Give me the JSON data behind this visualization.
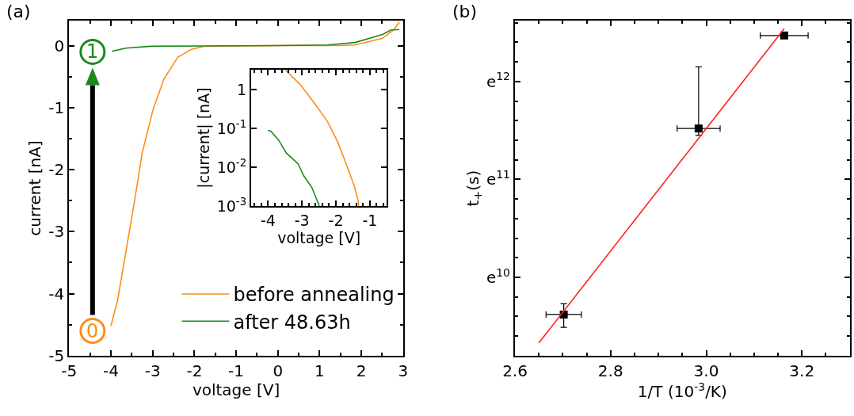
{
  "chart_data": [
    {
      "type": "line",
      "title": "(a)",
      "xlabel": "voltage [V]",
      "ylabel": "current [nA]",
      "xlim": [
        -5,
        3
      ],
      "xticks": [
        -5,
        -4,
        -3,
        -2,
        -1,
        0,
        1,
        2,
        3
      ],
      "ylim": [
        -5,
        0.4
      ],
      "yticks": [
        -5,
        -4,
        -3,
        -2,
        -1,
        0
      ],
      "legend": "bottom right",
      "marker": "none",
      "series": [
        {
          "name": "before annealing",
          "color": "#ff8c1a",
          "x": [
            -4.0,
            -3.84,
            -3.45,
            -3.25,
            -2.99,
            -2.73,
            -2.4,
            -2.07,
            -1.75,
            0.0,
            1.5,
            1.85,
            2.51,
            2.77,
            2.91
          ],
          "values": [
            -4.52,
            -4.11,
            -2.57,
            -1.73,
            -1.03,
            -0.54,
            -0.19,
            -0.06,
            -0.01,
            0.0,
            0.0,
            0.01,
            0.12,
            0.25,
            0.38
          ]
        },
        {
          "name": "after 48.63h",
          "color": "#1a8a1a",
          "x": [
            -3.97,
            -3.64,
            -3.05,
            0.0,
            1.2,
            1.85,
            2.51,
            2.7,
            2.91
          ],
          "values": [
            -0.09,
            -0.04,
            -0.01,
            0.0,
            0.01,
            0.05,
            0.18,
            0.25,
            0.26
          ]
        }
      ],
      "annotations": [
        {
          "text": "0",
          "x": -4.44,
          "y": -4.6
        },
        {
          "text": "1",
          "x": -4.44,
          "y": -0.1
        }
      ]
    },
    {
      "type": "line",
      "xlabel": "voltage [V]",
      "ylabel": "|current| [nA]",
      "log": "y",
      "xlim": [
        -4.5,
        -0.5
      ],
      "xticks": [
        -4,
        -3,
        -2,
        -1
      ],
      "ylim": [
        0.001,
        3.2
      ],
      "yticks": [
        {
          "value": 0.001,
          "label": "10$^{-3}$"
        },
        {
          "value": 0.01,
          "label": "10$^{-2}$"
        },
        {
          "value": 0.1,
          "label": "10$^{-1}$"
        },
        1
      ],
      "marker": "none",
      "series": [
        {
          "color": "#ff8c1a",
          "x": [
            -3.49,
            -3.04,
            -2.57,
            -2.25,
            -1.94,
            -1.7,
            -1.47,
            -1.35,
            -1.33
          ],
          "values": [
            3.2,
            1.3,
            0.37,
            0.15,
            0.043,
            0.012,
            0.0035,
            0.0014,
            0.001
          ]
        },
        {
          "color": "#1a8a1a",
          "x": [
            -4.0,
            -3.92,
            -3.69,
            -3.46,
            -3.11,
            -2.95,
            -2.71,
            -2.49
          ],
          "values": [
            0.089,
            0.085,
            0.05,
            0.023,
            0.012,
            0.006,
            0.003,
            0.001
          ]
        }
      ]
    },
    {
      "type": "scatter",
      "title": "(b)",
      "xlabel": "1/T (10$^{-3}$/K)",
      "ylabel": "t$_{+}$(s)",
      "xlim": [
        2.6,
        3.3
      ],
      "xticks": [
        2.6,
        2.8,
        {
          "value": 3.0,
          "label": "3.0"
        },
        3.2
      ],
      "ylim": [
        9.2,
        12.62
      ],
      "yticks": [
        {
          "value": 10,
          "label": "e$^{10}$"
        },
        {
          "value": 11,
          "label": "e$^{11}$"
        },
        {
          "value": 12,
          "label": "e$^{12}$"
        }
      ],
      "series": [
        {
          "type": "scatter",
          "marker": "square",
          "color": "#000000",
          "x": [
            2.702,
            2.984,
            3.163
          ],
          "values": [
            9.62,
            11.52,
            12.47
          ],
          "errors": [
            [
              9.49,
              9.73
            ],
            [
              11.45,
              12.15
            ],
            null
          ],
          "xerrors": [
            0.037,
            0.045,
            0.05
          ]
        },
        {
          "type": "line",
          "marker": "none",
          "color": "#ff2020",
          "x": [
            2.65,
            3.163
          ],
          "values": [
            9.33,
            12.54
          ]
        }
      ]
    }
  ]
}
